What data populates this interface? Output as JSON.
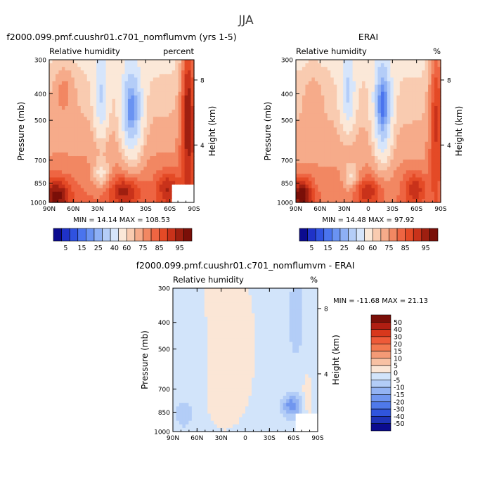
{
  "figure_title": "JJA",
  "chart_data": [
    {
      "type": "contour",
      "title": "f2000.099.pmf.cuushr01.c701_nomflumvm (yrs 1-5)",
      "left_label": "Relative humidity",
      "right_label": "percent",
      "xlabel": "",
      "ylabel": "Pressure (mb)",
      "y2label": "Height (km)",
      "x_ticks": [
        "90N",
        "60N",
        "30N",
        "0",
        "30S",
        "60S",
        "90S"
      ],
      "y_ticks": [
        "300",
        "400",
        "500",
        "700",
        "850",
        "1000"
      ],
      "y2_ticks": [
        "8",
        "4"
      ],
      "xlim": [
        90,
        -90
      ],
      "ylim": [
        1000,
        300
      ],
      "min_label": "MIN = ",
      "min": "14.14",
      "max_label": "MAX = ",
      "max": "108.53",
      "colorbar": {
        "orientation": "horizontal",
        "levels": [
          "5",
          "15",
          "25",
          "40",
          "60",
          "75",
          "85",
          "95"
        ],
        "colors": [
          "#0b0b8f",
          "#1f32c8",
          "#2f52e0",
          "#4a74ee",
          "#6a93f2",
          "#8eb0f5",
          "#b4cdf8",
          "#d6e5fb",
          "#fbe8d8",
          "#f9cbb0",
          "#f6ab8a",
          "#f28762",
          "#ee6542",
          "#e44a26",
          "#c9321a",
          "#9e1f10",
          "#7a0f08"
        ]
      }
    },
    {
      "type": "contour",
      "title": "ERAI",
      "left_label": "Relative humidity",
      "right_label": "%",
      "xlabel": "",
      "ylabel": "Pressure (mb)",
      "y2label": "Height (km)",
      "x_ticks": [
        "90N",
        "60N",
        "30N",
        "0",
        "30S",
        "60S",
        "90S"
      ],
      "y_ticks": [
        "300",
        "400",
        "500",
        "700",
        "850",
        "1000"
      ],
      "y2_ticks": [
        "8",
        "4"
      ],
      "xlim": [
        90,
        -90
      ],
      "ylim": [
        1000,
        300
      ],
      "min_label": "MIN = ",
      "min": "14.48",
      "max_label": "MAX = ",
      "max": "97.92",
      "colorbar": {
        "orientation": "horizontal",
        "levels": [
          "5",
          "15",
          "25",
          "40",
          "60",
          "75",
          "85",
          "95"
        ],
        "colors": [
          "#0b0b8f",
          "#1f32c8",
          "#2f52e0",
          "#4a74ee",
          "#6a93f2",
          "#8eb0f5",
          "#b4cdf8",
          "#d6e5fb",
          "#fbe8d8",
          "#f9cbb0",
          "#f6ab8a",
          "#f28762",
          "#ee6542",
          "#e44a26",
          "#c9321a",
          "#9e1f10",
          "#7a0f08"
        ]
      }
    },
    {
      "type": "contour",
      "title": "f2000.099.pmf.cuushr01.c701_nomflumvm - ERAI",
      "left_label": "Relative humidity",
      "right_label": "%",
      "xlabel": "",
      "ylabel": "Pressure (mb)",
      "y2label": "Height (km)",
      "x_ticks": [
        "90N",
        "60N",
        "30N",
        "0",
        "30S",
        "60S",
        "90S"
      ],
      "y_ticks": [
        "300",
        "400",
        "500",
        "700",
        "850",
        "1000"
      ],
      "y2_ticks": [
        "8",
        "4"
      ],
      "xlim": [
        90,
        -90
      ],
      "ylim": [
        1000,
        300
      ],
      "min_label": "MIN = ",
      "min": "-11.68",
      "max_label": "MAX = ",
      "max": "21.13",
      "colorbar": {
        "orientation": "vertical",
        "levels": [
          "50",
          "40",
          "30",
          "20",
          "15",
          "10",
          "5",
          "0",
          "-5",
          "-10",
          "-15",
          "-20",
          "-30",
          "-40",
          "-50"
        ],
        "colors": [
          "#7a0f08",
          "#b01e12",
          "#d8381c",
          "#ee5a38",
          "#f2784f",
          "#f49a76",
          "#f8c1a3",
          "#fbe6d6",
          "#d2e4fa",
          "#b3cdf7",
          "#93b3f3",
          "#7096ef",
          "#4f79ea",
          "#3055dd",
          "#1e33b8",
          "#0b0b8f"
        ]
      }
    }
  ]
}
